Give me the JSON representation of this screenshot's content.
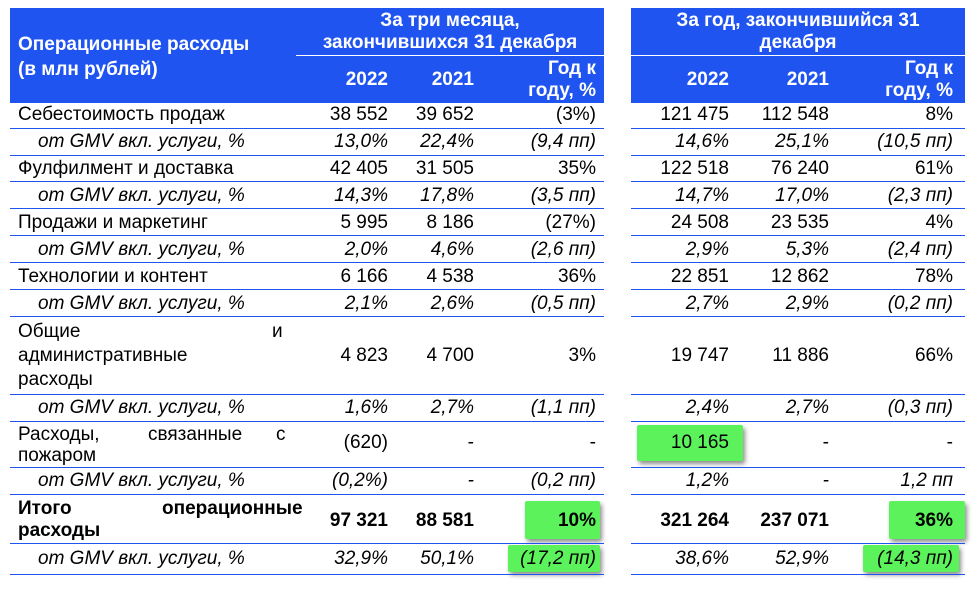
{
  "header": {
    "title_line1": "Операционные расходы",
    "title_line2": "(в млн рублей)",
    "period_3m_line1": "За три месяца,",
    "period_3m_line2": "закончившихся 31 декабря",
    "period_year_line1": "За год, закончившийся 31",
    "period_year_line2": "декабря",
    "col_2022": "2022",
    "col_2021": "2021",
    "col_yoy_line1": "Год к",
    "col_yoy_line2": "году, %",
    "col_2022_y": "2022",
    "col_2021_y": "2021",
    "col_yoy_y_line1": "Год к",
    "col_yoy_y_line2": "году, %"
  },
  "rows": [
    {
      "label": "Себестоимость продаж",
      "q22": "38 552",
      "q21": "39 652",
      "qyoy": "(3%)",
      "y22": "121 475",
      "y21": "112 548",
      "yyoy": "8%"
    },
    {
      "label": "от GMV вкл. услуги, %",
      "q22": "13,0%",
      "q21": "22,4%",
      "qyoy": "(9,4 пп)",
      "y22": "14,6%",
      "y21": "25,1%",
      "yyoy": "(10,5 пп)"
    },
    {
      "label": "Фулфилмент и доставка",
      "q22": "42 405",
      "q21": "31 505",
      "qyoy": "35%",
      "y22": "122 518",
      "y21": "76 240",
      "yyoy": "61%"
    },
    {
      "label": "от GMV вкл. услуги, %",
      "q22": "14,3%",
      "q21": "17,8%",
      "qyoy": "(3,5 пп)",
      "y22": "14,7%",
      "y21": "17,0%",
      "yyoy": "(2,3 пп)"
    },
    {
      "label": "Продажи и маркетинг",
      "q22": "5 995",
      "q21": "8 186",
      "qyoy": "(27%)",
      "y22": "24 508",
      "y21": "23 535",
      "yyoy": "4%"
    },
    {
      "label": "от GMV вкл. услуги, %",
      "q22": "2,0%",
      "q21": "4,6%",
      "qyoy": "(2,6 пп)",
      "y22": "2,9%",
      "y21": "5,3%",
      "yyoy": "(2,4 пп)"
    },
    {
      "label": "Технологии и контент",
      "q22": "6 166",
      "q21": "4 538",
      "qyoy": "36%",
      "y22": "22 851",
      "y21": "12 862",
      "yyoy": "78%"
    },
    {
      "label": "от GMV вкл. услуги, %",
      "q22": "2,1%",
      "q21": "2,6%",
      "qyoy": "(0,5 пп)",
      "y22": "2,7%",
      "y21": "2,9%",
      "yyoy": "(0,2 пп)"
    },
    {
      "label_line1_a": "Общие",
      "label_line1_b": "и",
      "label_line2": "административные",
      "label_line3": "расходы",
      "q22": "4 823",
      "q21": "4 700",
      "qyoy": "3%",
      "y22": "19 747",
      "y21": "11 886",
      "yyoy": "66%"
    },
    {
      "label": "от GMV вкл. услуги, %",
      "q22": "1,6%",
      "q21": "2,7%",
      "qyoy": "(1,1 пп)",
      "y22": "2,4%",
      "y21": "2,7%",
      "yyoy": "(0,3 пп)"
    },
    {
      "label_line1_a": "Расходы,",
      "label_line1_b": "связанные",
      "label_line1_c": "с",
      "label_line2": "пожаром",
      "q22": "(620)",
      "q21": "-",
      "qyoy": "-",
      "y22": "10 165",
      "y21": "-",
      "yyoy": "-"
    },
    {
      "label": "от GMV вкл. услуги, %",
      "q22": "(0,2%)",
      "q21": "-",
      "qyoy": "(0,2 пп)",
      "y22": "1,2%",
      "y21": "-",
      "yyoy": "1,2 пп"
    },
    {
      "label_line1_a": "Итого",
      "label_line1_b": "операционные",
      "label_line2": "расходы",
      "q22": "97 321",
      "q21": "88 581",
      "qyoy": "10%",
      "y22": "321 264",
      "y21": "237 071",
      "yyoy": "36%"
    },
    {
      "label": "от GMV вкл. услуги, %",
      "q22": "32,9%",
      "q21": "50,1%",
      "qyoy": "(17,2 пп)",
      "y22": "38,6%",
      "y21": "52,9%",
      "yyoy": "(14,3 пп)"
    }
  ],
  "colors": {
    "header_blue": "#1f54f0",
    "highlight_green": "#5cf25c"
  }
}
